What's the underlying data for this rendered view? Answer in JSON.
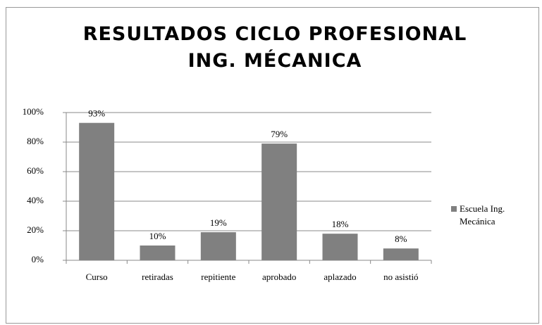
{
  "chart_data": {
    "type": "bar",
    "title": "RESULTADOS CICLO PROFESIONAL ING. MÉCANICA",
    "categories": [
      "Curso",
      "retiradas",
      "repitiente",
      "aprobado",
      "aplazado",
      "no asistió"
    ],
    "series": [
      {
        "name": "Escuela Ing. Mecánica",
        "color": "#808080",
        "values": [
          93,
          10,
          19,
          79,
          18,
          8
        ],
        "value_labels": [
          "93%",
          "10%",
          "19%",
          "79%",
          "18%",
          "8%"
        ]
      }
    ],
    "ylim": [
      0,
      100
    ],
    "yticks": [
      {
        "value": 0,
        "label": "0%"
      },
      {
        "value": 20,
        "label": "20%"
      },
      {
        "value": 40,
        "label": "40%"
      },
      {
        "value": 60,
        "label": "60%"
      },
      {
        "value": 80,
        "label": "80%"
      },
      {
        "value": 100,
        "label": "100%"
      }
    ],
    "grid": true,
    "legend": "right"
  }
}
